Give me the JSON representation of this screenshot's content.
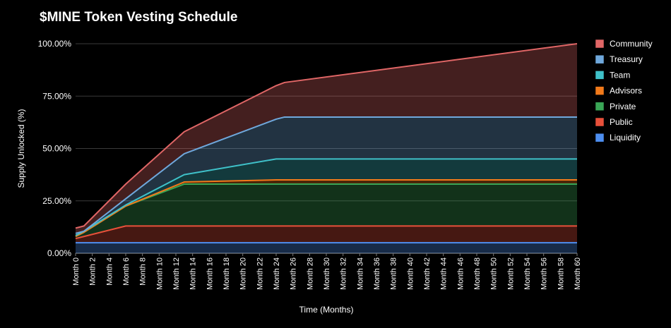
{
  "chart_data": {
    "type": "area",
    "stacked": true,
    "title": "$MINE Token Vesting Schedule",
    "xlabel": "Time (Months)",
    "ylabel": "Supply Unlocked (%)",
    "ylim": [
      0,
      100
    ],
    "y_ticks": [
      "0.00%",
      "25.00%",
      "50.00%",
      "75.00%",
      "100.00%"
    ],
    "x_tick_labels": [
      "Month 0",
      "Month 2",
      "Month 4",
      "Month 6",
      "Month 8",
      "Month 10",
      "Month 12",
      "Month 14",
      "Month 16",
      "Month 18",
      "Month 20",
      "Month 22",
      "Month 24",
      "Month 26",
      "Month 28",
      "Month 30",
      "Month 32",
      "Month 34",
      "Month 36",
      "Month 38",
      "Month 40",
      "Month 42",
      "Month 44",
      "Month 46",
      "Month 48",
      "Month 50",
      "Month 52",
      "Month 54",
      "Month 56",
      "Month 58",
      "Month 60"
    ],
    "x_months": [
      0,
      1,
      6,
      13,
      24,
      25,
      60
    ],
    "legend_position": "right",
    "grid": true,
    "series": [
      {
        "name": "Liquidity",
        "color": "#4d8ef0",
        "cumulative": [
          5,
          5,
          5,
          5,
          5,
          5,
          5
        ]
      },
      {
        "name": "Public",
        "color": "#e8503a",
        "cumulative": [
          7,
          8,
          13,
          13,
          13,
          13,
          13
        ]
      },
      {
        "name": "Private",
        "color": "#3aa656",
        "cumulative": [
          8,
          10,
          22.5,
          33,
          33,
          33,
          33
        ]
      },
      {
        "name": "Advisors",
        "color": "#f27a1a",
        "cumulative": [
          8,
          10,
          22.5,
          34,
          35,
          35,
          35
        ]
      },
      {
        "name": "Team",
        "color": "#3fc1c9",
        "cumulative": [
          8.5,
          10.5,
          23,
          37.5,
          45,
          45,
          45
        ]
      },
      {
        "name": "Treasury",
        "color": "#6fa8dc",
        "cumulative": [
          9.5,
          10.5,
          26,
          47.5,
          64,
          65,
          65
        ]
      },
      {
        "name": "Community",
        "color": "#e06666",
        "cumulative": [
          12,
          13,
          33,
          58,
          80,
          81.5,
          100
        ]
      }
    ]
  }
}
